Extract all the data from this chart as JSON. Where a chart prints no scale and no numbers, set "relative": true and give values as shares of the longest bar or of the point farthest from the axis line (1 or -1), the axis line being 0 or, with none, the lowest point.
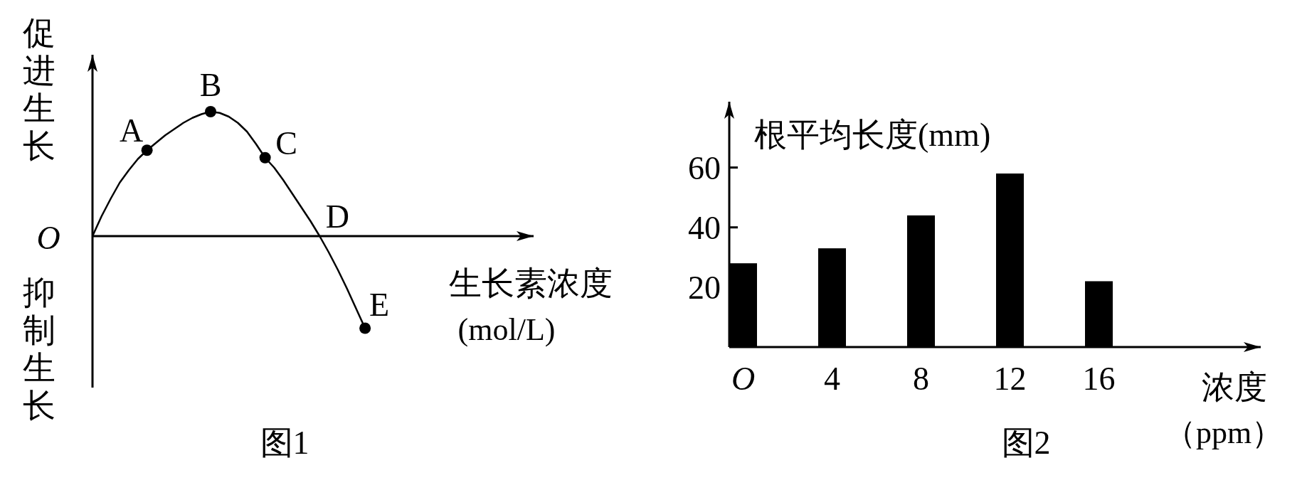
{
  "chart_data": [
    {
      "type": "line",
      "title": "图1",
      "xlabel": "生长素浓度(mol/L)",
      "ylabel": "促进生长",
      "relative": true,
      "categories": [
        null,
        null,
        null,
        null,
        null,
        null,
        null,
        null,
        null,
        null,
        null,
        null,
        null,
        null,
        null,
        null,
        null,
        null,
        null,
        null,
        null,
        null,
        null,
        null,
        null,
        null,
        null,
        null,
        null,
        null,
        null
      ],
      "series": [
        {
          "color": "#000000",
          "values": [
            0,
            0.16,
            0.3,
            0.43,
            0.53,
            0.62,
            0.69,
            0.75,
            0.81,
            0.86,
            0.91,
            0.95,
            0.98,
            1,
            0.99,
            0.96,
            0.91,
            0.84,
            0.74,
            0.63,
            0.55,
            0.45,
            0.34,
            0.23,
            0.12,
            0,
            -0.13,
            -0.27,
            -0.42,
            -0.58,
            -0.74
          ]
        }
      ],
      "annotations": [
        "O",
        "抑制生长",
        "A",
        "B",
        "C",
        "D",
        "E"
      ]
    },
    {
      "type": "bar",
      "title": "图2",
      "ylabel": "根平均长度(mm)",
      "xlabel": "浓度（ppm）",
      "categories": [
        "O",
        "4",
        "8",
        "12",
        "16"
      ],
      "values": [
        28,
        33,
        44,
        58,
        22
      ],
      "color": "#000000",
      "ylim": [
        0,
        82
      ],
      "yticks": [
        20,
        40,
        60
      ]
    }
  ]
}
